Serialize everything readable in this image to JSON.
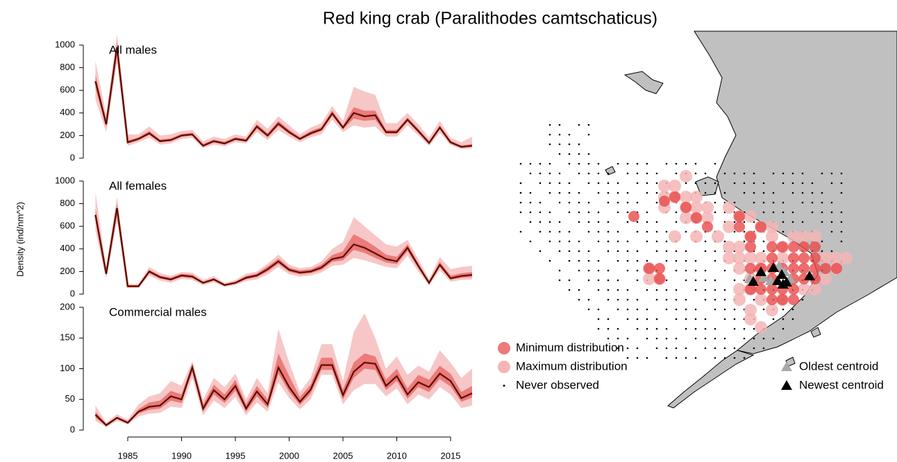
{
  "title": "Red king crab (Paralithodes camtschaticus)",
  "ylabel": "Density (ind/nm^2)",
  "chart_data": [
    {
      "type": "line",
      "label": "All males",
      "xlim": [
        1982,
        2017
      ],
      "ylim": [
        0,
        1000
      ],
      "yticks": [
        0,
        200,
        400,
        600,
        800,
        1000
      ],
      "x": [
        1982,
        1983,
        1984,
        1985,
        1986,
        1987,
        1988,
        1989,
        1990,
        1991,
        1992,
        1993,
        1994,
        1995,
        1996,
        1997,
        1998,
        1999,
        2000,
        2001,
        2002,
        2003,
        2004,
        2005,
        2006,
        2007,
        2008,
        2009,
        2010,
        2011,
        2012,
        2013,
        2014,
        2015,
        2016,
        2017
      ],
      "values": [
        680,
        300,
        980,
        140,
        170,
        220,
        150,
        160,
        200,
        210,
        110,
        150,
        130,
        170,
        155,
        280,
        200,
        305,
        230,
        170,
        220,
        255,
        395,
        270,
        400,
        370,
        380,
        230,
        230,
        340,
        240,
        135,
        270,
        140,
        100,
        110
      ],
      "outer_low": [
        520,
        230,
        850,
        110,
        140,
        180,
        120,
        130,
        170,
        180,
        90,
        120,
        105,
        140,
        130,
        230,
        160,
        250,
        190,
        140,
        185,
        210,
        340,
        230,
        290,
        270,
        280,
        190,
        190,
        290,
        200,
        110,
        225,
        115,
        80,
        85
      ],
      "outer_high": [
        860,
        380,
        1100,
        210,
        210,
        280,
        200,
        210,
        240,
        250,
        150,
        190,
        170,
        210,
        190,
        340,
        260,
        370,
        290,
        210,
        270,
        310,
        460,
        330,
        630,
        590,
        560,
        310,
        310,
        400,
        300,
        180,
        330,
        180,
        140,
        190
      ],
      "inner_low": [
        620,
        275,
        940,
        130,
        160,
        205,
        140,
        150,
        190,
        200,
        100,
        140,
        120,
        160,
        145,
        260,
        185,
        285,
        215,
        160,
        205,
        240,
        375,
        255,
        350,
        330,
        340,
        215,
        215,
        325,
        225,
        125,
        255,
        130,
        92,
        100
      ],
      "inner_high": [
        740,
        330,
        1020,
        155,
        185,
        240,
        165,
        175,
        215,
        225,
        125,
        165,
        145,
        185,
        170,
        300,
        220,
        330,
        250,
        185,
        240,
        275,
        420,
        290,
        450,
        420,
        420,
        250,
        250,
        360,
        260,
        150,
        290,
        155,
        112,
        125
      ]
    },
    {
      "type": "line",
      "label": "All females",
      "xlim": [
        1982,
        2017
      ],
      "ylim": [
        0,
        1000
      ],
      "yticks": [
        0,
        200,
        400,
        600,
        800,
        1000
      ],
      "x": [
        1982,
        1983,
        1984,
        1985,
        1986,
        1987,
        1988,
        1989,
        1990,
        1991,
        1992,
        1993,
        1994,
        1995,
        1996,
        1997,
        1998,
        1999,
        2000,
        2001,
        2002,
        2003,
        2004,
        2005,
        2006,
        2007,
        2008,
        2009,
        2010,
        2011,
        2012,
        2013,
        2014,
        2015,
        2016,
        2017
      ],
      "values": [
        700,
        180,
        760,
        70,
        70,
        200,
        150,
        130,
        165,
        155,
        100,
        130,
        80,
        100,
        145,
        165,
        220,
        290,
        215,
        190,
        200,
        235,
        310,
        330,
        440,
        410,
        360,
        310,
        290,
        410,
        250,
        100,
        260,
        140,
        160,
        170
      ],
      "outer_low": [
        560,
        140,
        650,
        55,
        55,
        165,
        120,
        100,
        135,
        125,
        80,
        105,
        65,
        80,
        115,
        130,
        175,
        240,
        175,
        155,
        165,
        190,
        250,
        260,
        320,
        300,
        270,
        240,
        230,
        340,
        200,
        80,
        210,
        110,
        125,
        130
      ],
      "outer_high": [
        900,
        230,
        860,
        90,
        90,
        240,
        185,
        160,
        195,
        190,
        125,
        160,
        100,
        125,
        180,
        200,
        270,
        350,
        260,
        230,
        240,
        290,
        400,
        460,
        680,
        600,
        520,
        440,
        420,
        480,
        310,
        130,
        330,
        220,
        240,
        250
      ],
      "inner_low": [
        650,
        165,
        720,
        65,
        65,
        185,
        138,
        118,
        152,
        142,
        92,
        120,
        74,
        92,
        132,
        150,
        200,
        268,
        198,
        175,
        185,
        215,
        285,
        300,
        390,
        365,
        320,
        280,
        265,
        380,
        230,
        92,
        240,
        128,
        145,
        150
      ],
      "inner_high": [
        760,
        200,
        800,
        78,
        78,
        215,
        165,
        145,
        180,
        172,
        110,
        142,
        88,
        110,
        160,
        182,
        245,
        315,
        235,
        210,
        220,
        260,
        345,
        380,
        530,
        480,
        420,
        350,
        330,
        440,
        275,
        110,
        285,
        165,
        185,
        195
      ]
    },
    {
      "type": "line",
      "label": "Commercial males",
      "xlim": [
        1982,
        2017
      ],
      "ylim": [
        0,
        200
      ],
      "yticks": [
        0,
        50,
        100,
        150,
        200
      ],
      "xticks": [
        1985,
        1990,
        1995,
        2000,
        2005,
        2010,
        2015
      ],
      "x": [
        1982,
        1983,
        1984,
        1985,
        1986,
        1987,
        1988,
        1989,
        1990,
        1991,
        1992,
        1993,
        1994,
        1995,
        1996,
        1997,
        1998,
        1999,
        2000,
        2001,
        2002,
        2003,
        2004,
        2005,
        2006,
        2007,
        2008,
        2009,
        2010,
        2011,
        2012,
        2013,
        2014,
        2015,
        2016,
        2017
      ],
      "values": [
        25,
        8,
        20,
        12,
        30,
        38,
        40,
        55,
        50,
        102,
        35,
        65,
        50,
        72,
        35,
        63,
        42,
        102,
        70,
        46,
        66,
        106,
        106,
        57,
        95,
        110,
        108,
        72,
        88,
        58,
        78,
        70,
        92,
        80,
        52,
        60
      ],
      "outer_low": [
        15,
        5,
        15,
        9,
        22,
        27,
        28,
        38,
        36,
        85,
        24,
        48,
        36,
        54,
        24,
        45,
        30,
        78,
        52,
        34,
        50,
        90,
        90,
        42,
        65,
        75,
        75,
        55,
        68,
        42,
        58,
        50,
        70,
        58,
        36,
        40
      ],
      "outer_high": [
        40,
        12,
        26,
        17,
        42,
        55,
        60,
        80,
        72,
        112,
        50,
        85,
        70,
        92,
        50,
        85,
        60,
        165,
        110,
        62,
        85,
        140,
        140,
        80,
        160,
        190,
        150,
        100,
        120,
        90,
        105,
        95,
        130,
        110,
        85,
        100
      ],
      "inner_low": [
        20,
        7,
        18,
        11,
        27,
        33,
        35,
        48,
        44,
        95,
        30,
        58,
        44,
        64,
        30,
        55,
        36,
        92,
        62,
        41,
        59,
        98,
        98,
        50,
        85,
        100,
        98,
        65,
        80,
        51,
        70,
        62,
        83,
        71,
        46,
        53
      ],
      "inner_high": [
        30,
        10,
        22,
        14,
        34,
        45,
        48,
        64,
        58,
        108,
        42,
        74,
        58,
        82,
        42,
        72,
        50,
        125,
        88,
        54,
        74,
        118,
        118,
        66,
        110,
        125,
        120,
        82,
        100,
        68,
        90,
        82,
        105,
        92,
        62,
        72
      ]
    }
  ],
  "map": {
    "legend": [
      "Minimum distribution",
      "Maximum distribution",
      "Never observed",
      "Oldest centroid",
      "Newest centroid"
    ]
  }
}
